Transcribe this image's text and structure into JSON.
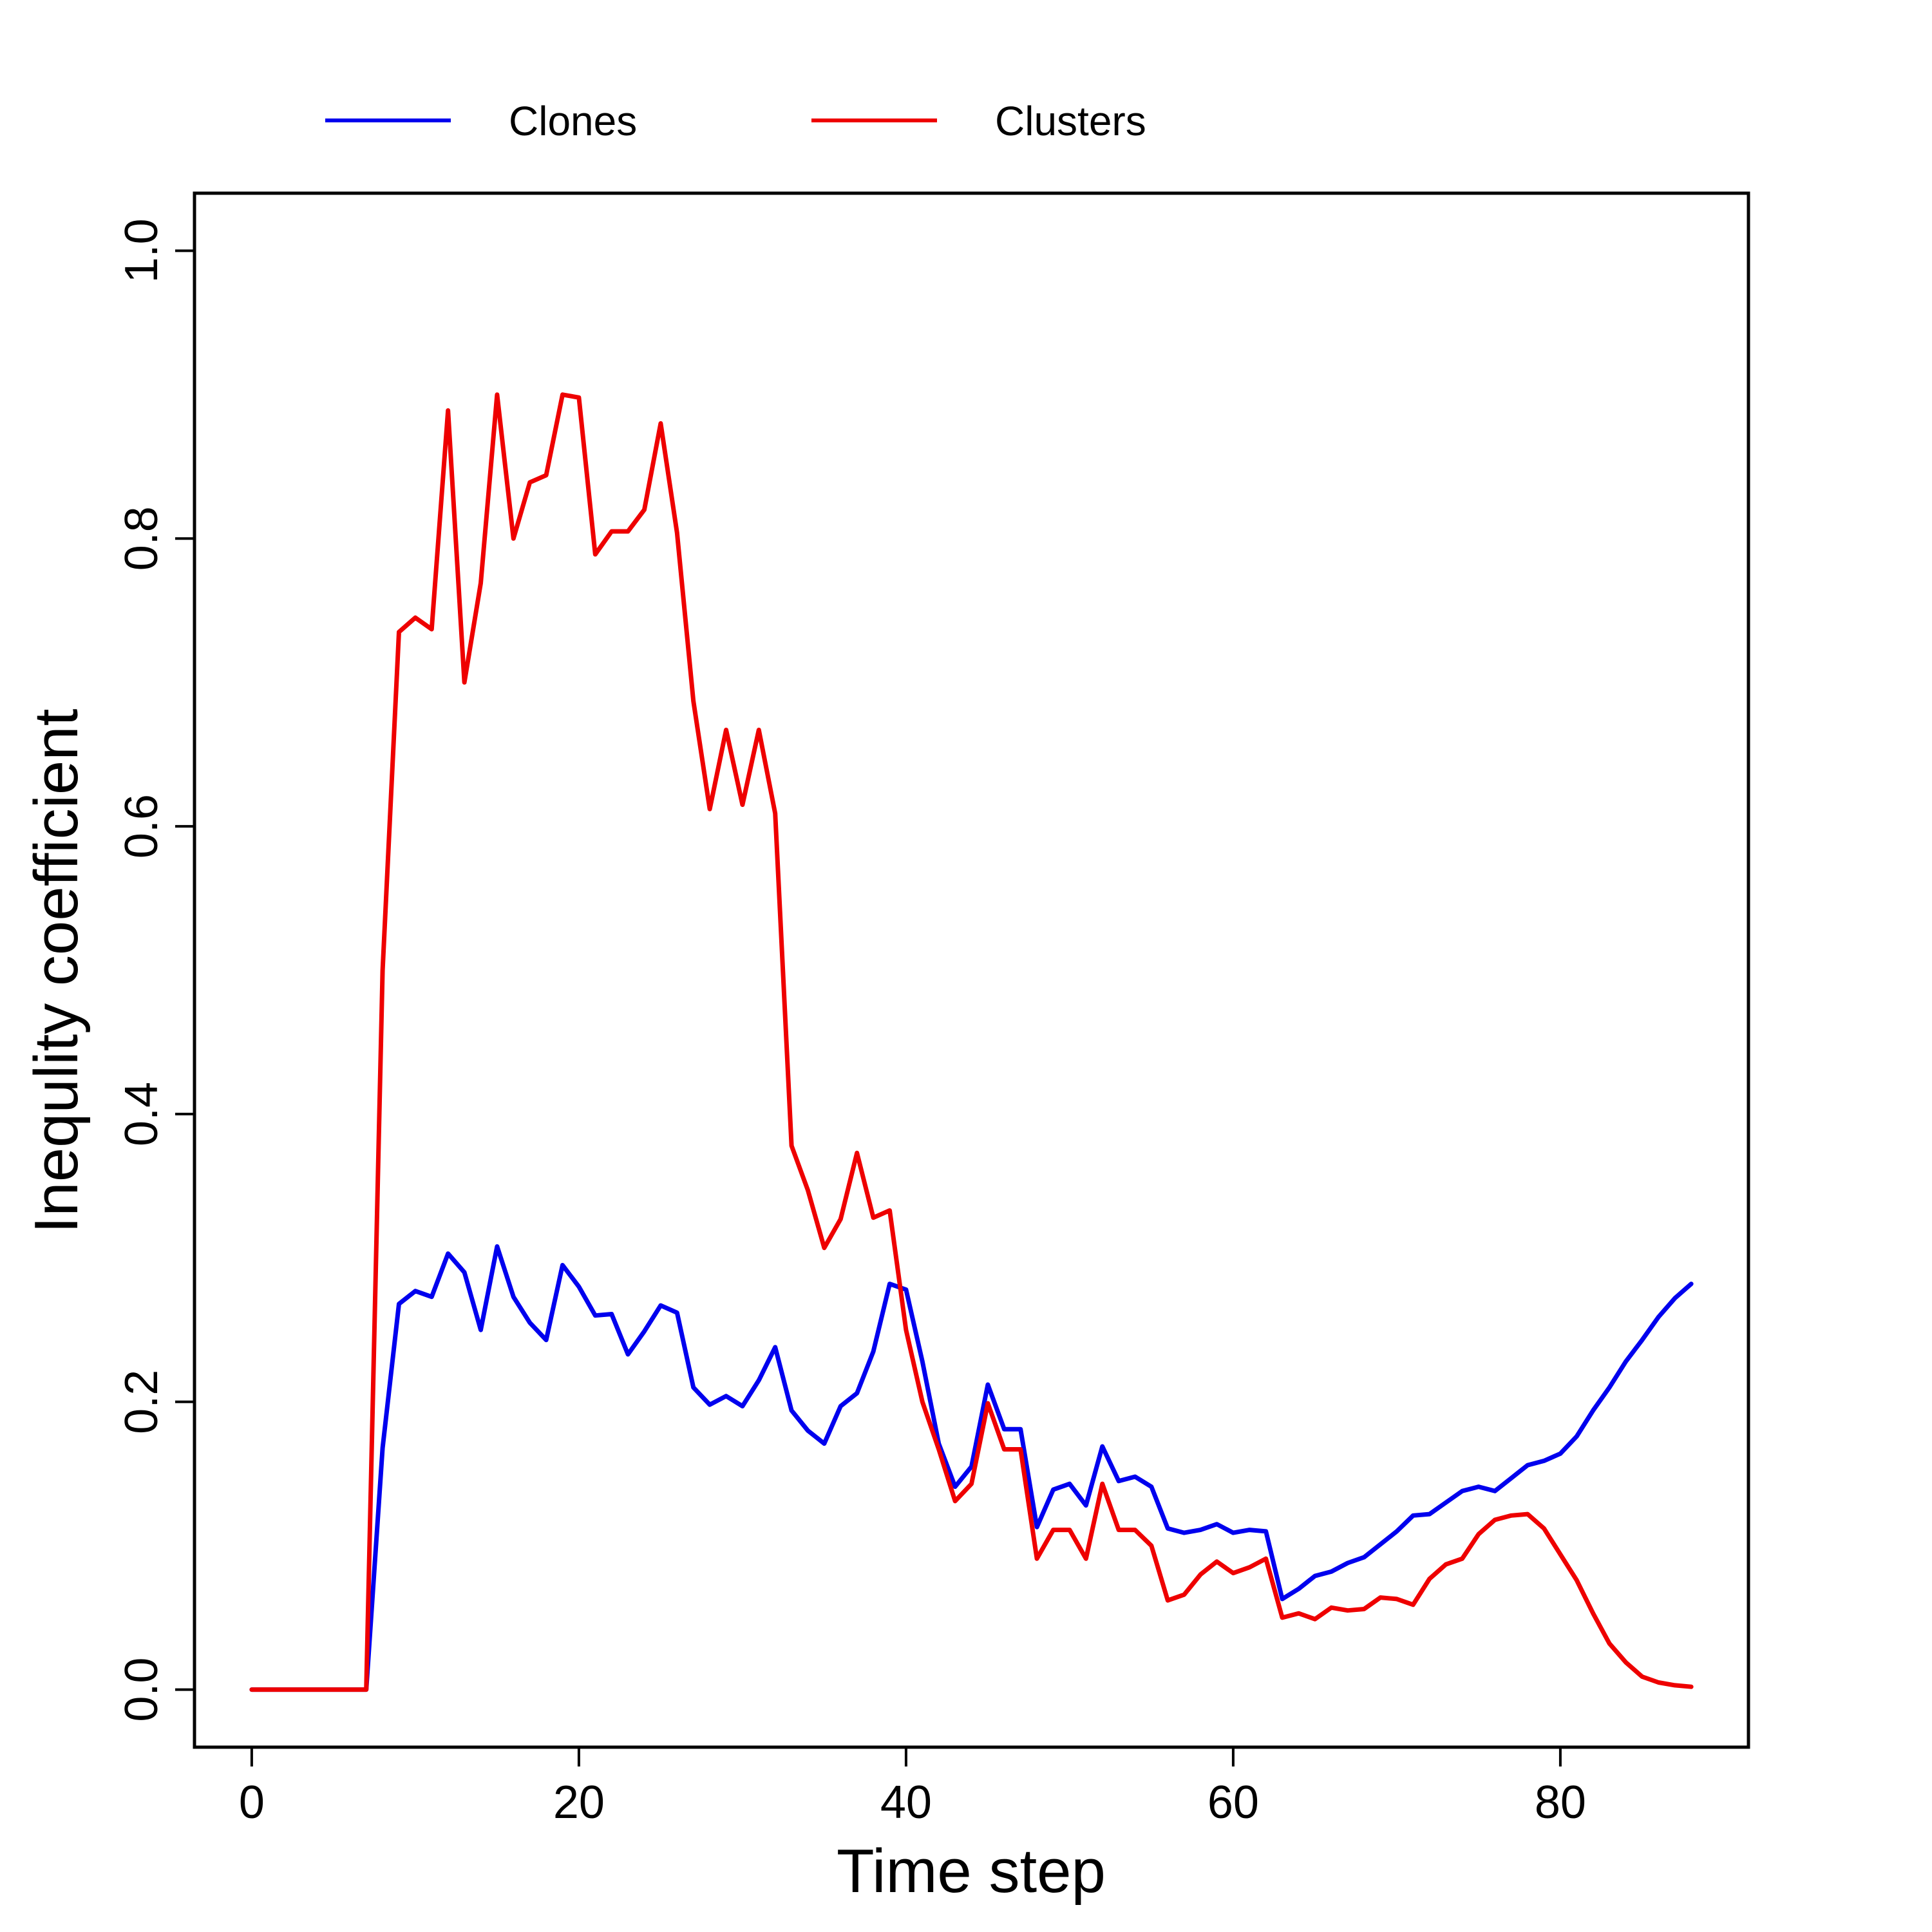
{
  "chart_data": {
    "type": "line",
    "title": "",
    "xlabel": "Time step",
    "ylabel": "Inequlity coefficient",
    "xlim": [
      -3.5,
      91.5
    ],
    "ylim": [
      -0.04,
      1.04
    ],
    "xticks": [
      0,
      20,
      40,
      60,
      80
    ],
    "xtick_labels": [
      "0",
      "20",
      "40",
      "60",
      "80"
    ],
    "yticks": [
      0.0,
      0.2,
      0.4,
      0.6,
      0.8,
      1.0
    ],
    "ytick_labels": [
      "0.0",
      "0.2",
      "0.4",
      "0.6",
      "0.8",
      "1.0"
    ],
    "grid": false,
    "legend_position": "top, outside plot",
    "x": [
      0,
      1,
      2,
      3,
      4,
      5,
      6,
      7,
      8,
      9,
      10,
      11,
      12,
      13,
      14,
      15,
      16,
      17,
      18,
      19,
      20,
      21,
      22,
      23,
      24,
      25,
      26,
      27,
      28,
      29,
      30,
      31,
      32,
      33,
      34,
      35,
      36,
      37,
      38,
      39,
      40,
      41,
      42,
      43,
      44,
      45,
      46,
      47,
      48,
      49,
      50,
      51,
      52,
      53,
      54,
      55,
      56,
      57,
      58,
      59,
      60,
      61,
      62,
      63,
      64,
      65,
      66,
      67,
      68,
      69,
      70,
      71,
      72,
      73,
      74,
      75,
      76,
      77,
      78,
      79,
      80,
      81,
      82,
      83,
      84,
      85,
      86,
      87,
      88
    ],
    "series": [
      {
        "name": "Clones",
        "color": "#0000ee",
        "values": [
          0,
          0,
          0,
          0,
          0,
          0,
          0,
          0,
          0.168,
          0.268,
          0.277,
          0.273,
          0.303,
          0.29,
          0.25,
          0.308,
          0.273,
          0.255,
          0.243,
          0.295,
          0.28,
          0.26,
          0.261,
          0.233,
          0.249,
          0.267,
          0.262,
          0.21,
          0.198,
          0.204,
          0.197,
          0.215,
          0.238,
          0.194,
          0.18,
          0.171,
          0.197,
          0.206,
          0.235,
          0.282,
          0.278,
          0.228,
          0.171,
          0.141,
          0.155,
          0.212,
          0.181,
          0.181,
          0.113,
          0.139,
          0.143,
          0.128,
          0.169,
          0.145,
          0.148,
          0.141,
          0.112,
          0.109,
          0.111,
          0.115,
          0.109,
          0.111,
          0.11,
          0.063,
          0.07,
          0.079,
          0.082,
          0.088,
          0.092,
          0.101,
          0.11,
          0.121,
          0.122,
          0.13,
          0.138,
          0.141,
          0.138,
          0.147,
          0.156,
          0.159,
          0.164,
          0.176,
          0.194,
          0.21,
          0.228,
          0.243,
          0.259,
          0.272,
          0.282
        ]
      },
      {
        "name": "Clusters",
        "color": "#ee0000",
        "values": [
          0,
          0,
          0,
          0,
          0,
          0,
          0,
          0,
          0.5,
          0.735,
          0.745,
          0.737,
          0.889,
          0.7,
          0.769,
          0.9,
          0.8,
          0.839,
          0.844,
          0.9,
          0.898,
          0.789,
          0.805,
          0.805,
          0.82,
          0.88,
          0.804,
          0.687,
          0.612,
          0.667,
          0.615,
          0.667,
          0.609,
          0.378,
          0.347,
          0.307,
          0.327,
          0.373,
          0.328,
          0.333,
          0.25,
          0.2,
          0.167,
          0.131,
          0.143,
          0.199,
          0.167,
          0.167,
          0.091,
          0.111,
          0.111,
          0.091,
          0.143,
          0.111,
          0.111,
          0.1,
          0.062,
          0.066,
          0.08,
          0.089,
          0.081,
          0.085,
          0.091,
          0.05,
          0.053,
          0.049,
          0.057,
          0.055,
          0.056,
          0.064,
          0.063,
          0.059,
          0.077,
          0.087,
          0.091,
          0.108,
          0.118,
          0.121,
          0.122,
          0.112,
          0.094,
          0.076,
          0.053,
          0.032,
          0.019,
          0.009,
          0.005,
          0.003,
          0.002
        ]
      }
    ]
  }
}
